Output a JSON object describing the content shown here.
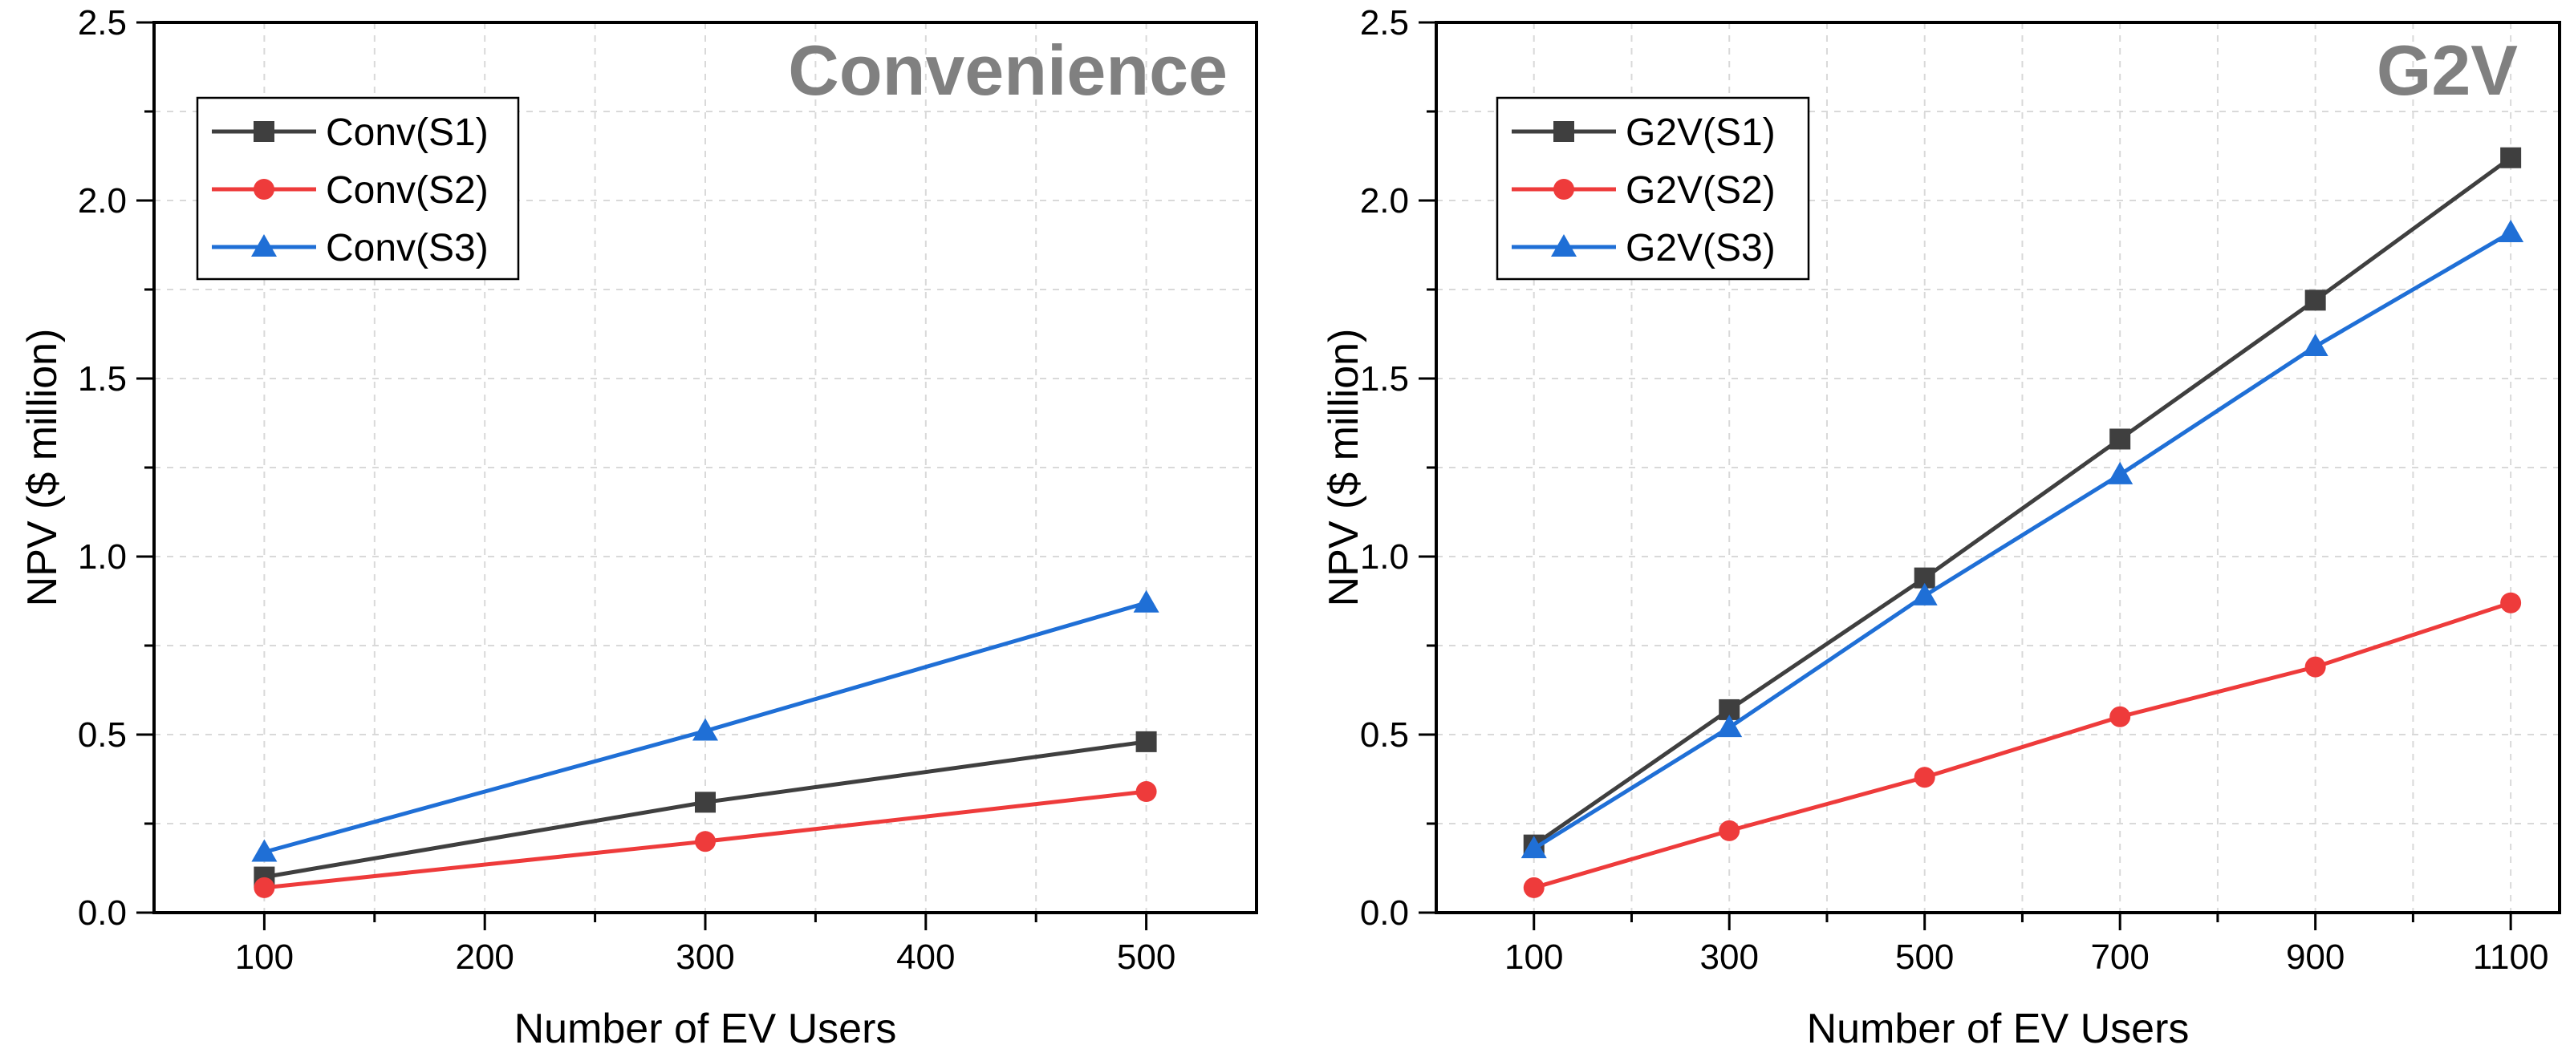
{
  "chart_data": [
    {
      "type": "line",
      "title": "Convenience",
      "xlabel": "Number of EV Users",
      "ylabel": "NPV ($ million)",
      "xlim": [
        50,
        550
      ],
      "ylim": [
        0,
        2.5
      ],
      "xticks": [
        100,
        200,
        300,
        400,
        500
      ],
      "xtick_labels": [
        "100",
        "200",
        "300",
        "400",
        "500"
      ],
      "yticks": [
        0,
        0.5,
        1.0,
        1.5,
        2.0,
        2.5
      ],
      "ytick_labels": [
        "0.0",
        "0.5",
        "1.0",
        "1.5",
        "2.0",
        "2.5"
      ],
      "grid": true,
      "legend_position": "top-left",
      "series": [
        {
          "name": "Conv(S1)",
          "color": "#3f3f3f",
          "marker": "square",
          "x": [
            100,
            300,
            500
          ],
          "y": [
            0.1,
            0.31,
            0.48
          ]
        },
        {
          "name": "Conv(S2)",
          "color": "#ee3b3b",
          "marker": "circle",
          "x": [
            100,
            300,
            500
          ],
          "y": [
            0.07,
            0.2,
            0.34
          ]
        },
        {
          "name": "Conv(S3)",
          "color": "#1f6fd6",
          "marker": "triangle",
          "x": [
            100,
            300,
            500
          ],
          "y": [
            0.17,
            0.51,
            0.87
          ]
        }
      ]
    },
    {
      "type": "line",
      "title": "G2V",
      "xlabel": "Number of EV Users",
      "ylabel": "NPV ($ million)",
      "xlim": [
        0,
        1150
      ],
      "ylim": [
        0,
        2.5
      ],
      "xticks": [
        100,
        300,
        500,
        700,
        900,
        1100
      ],
      "xtick_labels": [
        "100",
        "300",
        "500",
        "700",
        "900",
        "1100"
      ],
      "yticks": [
        0,
        0.5,
        1.0,
        1.5,
        2.0,
        2.5
      ],
      "ytick_labels": [
        "0.0",
        "0.5",
        "1.0",
        "1.5",
        "2.0",
        "2.5"
      ],
      "grid": true,
      "legend_position": "top-left",
      "series": [
        {
          "name": "G2V(S1)",
          "color": "#3f3f3f",
          "marker": "square",
          "x": [
            100,
            300,
            500,
            700,
            900,
            1100
          ],
          "y": [
            0.19,
            0.57,
            0.94,
            1.33,
            1.72,
            2.12
          ]
        },
        {
          "name": "G2V(S2)",
          "color": "#ee3b3b",
          "marker": "circle",
          "x": [
            100,
            300,
            500,
            700,
            900,
            1100
          ],
          "y": [
            0.07,
            0.23,
            0.38,
            0.55,
            0.69,
            0.87
          ]
        },
        {
          "name": "G2V(S3)",
          "color": "#1f6fd6",
          "marker": "triangle",
          "x": [
            100,
            300,
            500,
            700,
            900,
            1100
          ],
          "y": [
            0.18,
            0.52,
            0.89,
            1.23,
            1.59,
            1.91
          ]
        }
      ]
    }
  ]
}
